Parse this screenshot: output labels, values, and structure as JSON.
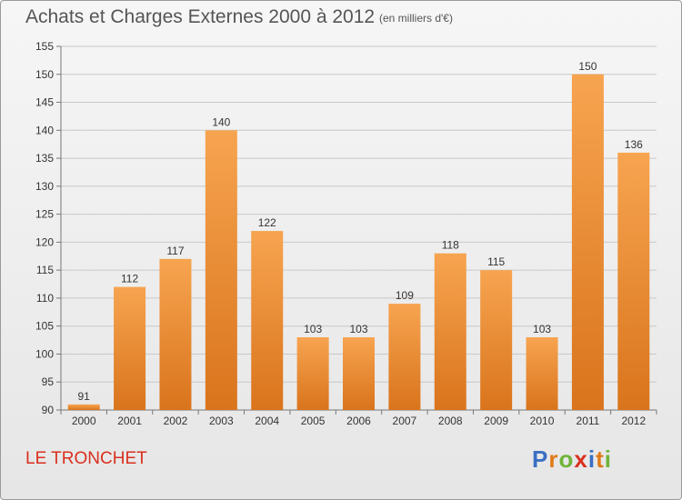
{
  "header": {
    "title": "Achats et Charges Externes 2000 à 2012",
    "subtitle": "(en milliers d'€)"
  },
  "footer": {
    "commune": "LE TRONCHET",
    "logo_letters": [
      {
        "ch": "P",
        "color": "#3a6fc4"
      },
      {
        "ch": "r",
        "color": "#e07b1a"
      },
      {
        "ch": "o",
        "color": "#6fb43a"
      },
      {
        "ch": "x",
        "color": "#d9301f"
      },
      {
        "ch": "i",
        "color": "#3a6fc4"
      },
      {
        "ch": "t",
        "color": "#e07b1a"
      },
      {
        "ch": "i",
        "color": "#6fb43a"
      }
    ]
  },
  "chart_data": {
    "type": "bar",
    "categories": [
      "2000",
      "2001",
      "2002",
      "2003",
      "2004",
      "2005",
      "2006",
      "2007",
      "2008",
      "2009",
      "2010",
      "2011",
      "2012"
    ],
    "values": [
      91,
      112,
      117,
      140,
      122,
      103,
      103,
      109,
      118,
      115,
      103,
      150,
      136
    ],
    "ylim": [
      90,
      155
    ],
    "yticks": [
      90,
      95,
      100,
      105,
      110,
      115,
      120,
      125,
      130,
      135,
      140,
      145,
      150,
      155
    ],
    "grid": true,
    "bar_color_top": "#f7a450",
    "bar_color_bottom": "#d9741c"
  }
}
